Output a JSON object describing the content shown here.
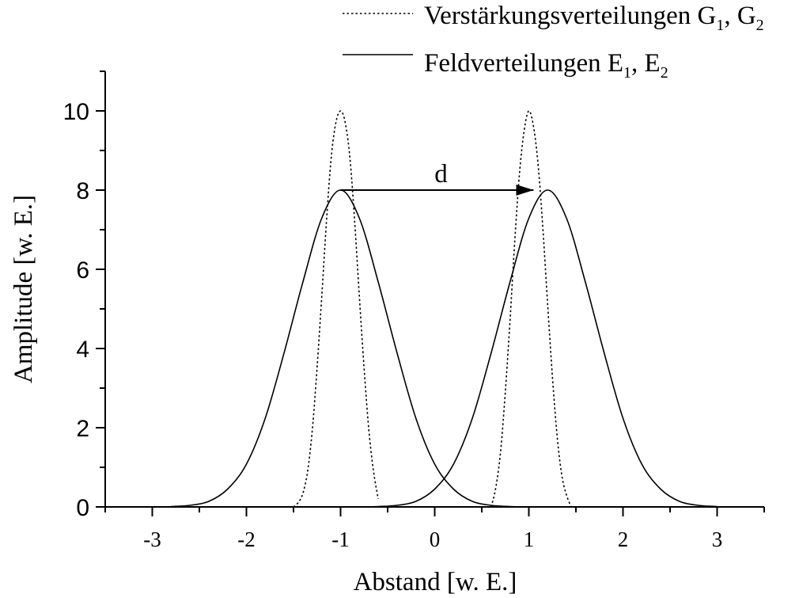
{
  "chart_data": {
    "type": "line",
    "title": "",
    "xlabel": "Abstand [w. E.]",
    "ylabel": "Amplitude [w. E.]",
    "xlim": [
      -3.5,
      3.5
    ],
    "ylim": [
      0,
      11
    ],
    "x_ticks": [
      -3,
      -2,
      -1,
      0,
      1,
      2,
      3
    ],
    "y_ticks": [
      0,
      2,
      4,
      6,
      8,
      10
    ],
    "x_minor_ticks": [
      -3.5,
      -2.5,
      -1.5,
      -0.5,
      0.5,
      1.5,
      2.5,
      3.5
    ],
    "y_minor_ticks": [
      1,
      3,
      5,
      7,
      9,
      11
    ],
    "grid": false,
    "legend_position": "top-right",
    "series": [
      {
        "id": "G1",
        "group": "gain",
        "style": "dotted",
        "color": "#000000",
        "x": [
          -1.5,
          -1.45,
          -1.4,
          -1.35,
          -1.3,
          -1.25,
          -1.2,
          -1.15,
          -1.1,
          -1.05,
          -1.0,
          -0.95,
          -0.9,
          -0.85,
          -0.8,
          -0.75,
          -0.7,
          -0.65,
          -0.6
        ],
        "y": [
          0.0,
          0.11,
          0.34,
          0.9,
          1.95,
          3.5,
          5.3,
          7.2,
          8.8,
          9.7,
          10.0,
          9.7,
          8.8,
          7.2,
          5.3,
          3.5,
          1.95,
          0.9,
          0.2
        ]
      },
      {
        "id": "G2",
        "group": "gain",
        "style": "dotted",
        "color": "#000000",
        "x": [
          0.6,
          0.65,
          0.7,
          0.75,
          0.8,
          0.85,
          0.9,
          0.95,
          1.0,
          1.05,
          1.1,
          1.15,
          1.2,
          1.25,
          1.3,
          1.35,
          1.4,
          1.45
        ],
        "y": [
          0.0,
          0.5,
          1.4,
          2.9,
          4.7,
          6.7,
          8.4,
          9.5,
          10.0,
          9.6,
          8.6,
          7.0,
          5.1,
          3.3,
          1.8,
          0.8,
          0.3,
          0.0
        ]
      },
      {
        "id": "E1",
        "group": "field",
        "style": "solid",
        "color": "#000000",
        "x": [
          -2.8,
          -2.6,
          -2.4,
          -2.2,
          -2.0,
          -1.8,
          -1.6,
          -1.4,
          -1.2,
          -1.0,
          -0.8,
          -0.6,
          -0.4,
          -0.2,
          0.0,
          0.2,
          0.4,
          0.6,
          0.8,
          1.0
        ],
        "y": [
          0.01,
          0.04,
          0.14,
          0.45,
          1.08,
          2.24,
          3.89,
          5.68,
          7.29,
          8.0,
          7.29,
          5.68,
          3.89,
          2.24,
          1.08,
          0.45,
          0.14,
          0.04,
          0.01,
          0.0
        ]
      },
      {
        "id": "E2",
        "group": "field",
        "style": "solid",
        "color": "#000000",
        "x": [
          -0.8,
          -0.6,
          -0.4,
          -0.2,
          0.0,
          0.2,
          0.4,
          0.6,
          0.8,
          1.0,
          1.2,
          1.4,
          1.6,
          1.8,
          2.0,
          2.2,
          2.4,
          2.6,
          2.8,
          3.0
        ],
        "y": [
          0.0,
          0.01,
          0.04,
          0.14,
          0.45,
          1.08,
          2.24,
          3.89,
          5.68,
          7.29,
          8.0,
          7.29,
          5.68,
          3.89,
          2.24,
          1.08,
          0.45,
          0.14,
          0.04,
          0.01
        ]
      }
    ],
    "legend": [
      {
        "label_main": "Verstärkungsverteilungen G",
        "sub1": "1",
        "sep": ", G",
        "sub2": "2",
        "style": "dotted"
      },
      {
        "label_main": "Feldverteilungen E",
        "sub1": "1",
        "sep": ", E",
        "sub2": "2",
        "style": "solid"
      }
    ],
    "annotations": [
      {
        "type": "arrow",
        "text": "d",
        "from": [
          -1.0,
          8.0
        ],
        "to": [
          1.05,
          8.0
        ]
      }
    ]
  }
}
